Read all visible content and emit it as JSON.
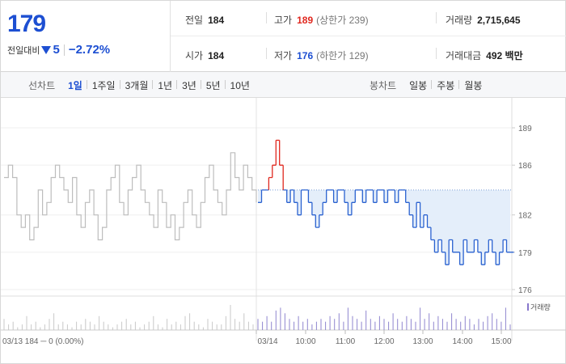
{
  "quote": {
    "price": "179",
    "change_label": "전일대비",
    "change_value": "5",
    "change_rate": "−2.72%",
    "colors": {
      "down": "#1d4fd2",
      "up": "#e0281f"
    }
  },
  "stats": {
    "prev_close": {
      "label": "전일",
      "value": "184"
    },
    "high": {
      "label": "고가",
      "value": "189",
      "sub": "(상한가 239)"
    },
    "volume": {
      "label": "거래량",
      "value": "2,715,645"
    },
    "open": {
      "label": "시가",
      "value": "184"
    },
    "low": {
      "label": "저가",
      "value": "176",
      "sub": "(하한가 129)"
    },
    "amount": {
      "label": "거래대금",
      "value": "492 백만"
    }
  },
  "toolbar": {
    "line_label": "선차트",
    "line_periods": [
      "1일",
      "1주일",
      "3개월",
      "1년",
      "3년",
      "5년",
      "10년"
    ],
    "active_period": "1일",
    "candle_label": "봉차트",
    "candle_periods": [
      "일봉",
      "주봉",
      "월봉"
    ]
  },
  "chart_data": {
    "type": "line",
    "y_ticks": [
      "189",
      "186",
      "182",
      "179",
      "176"
    ],
    "ylim": [
      176,
      189
    ],
    "prev_close": 184,
    "x_ticks": [
      "03/14",
      "10:00",
      "11:00",
      "12:00",
      "13:00",
      "14:00",
      "15:00"
    ],
    "prev_day_label": "03/13  184 ─ 0 (0.00%)",
    "volume_legend": "거래량",
    "series": [
      {
        "name": "03/13",
        "color": "#bdbdbd",
        "values": [
          185,
          186,
          185,
          182,
          181,
          182,
          180,
          181,
          184,
          182,
          183,
          185,
          186,
          185,
          184,
          183,
          185,
          182,
          181,
          183,
          184,
          182,
          180,
          181,
          184,
          185,
          186,
          183,
          182,
          184,
          185,
          186,
          184,
          183,
          182,
          181,
          184,
          183,
          181,
          182,
          180,
          181,
          183,
          184,
          182,
          181,
          183,
          185,
          186,
          184,
          183,
          182,
          184,
          187,
          185,
          184,
          186,
          185,
          184,
          183
        ]
      },
      {
        "name": "03/14",
        "color": "#2a62d0",
        "up_color": "#e0281f",
        "values": [
          183,
          184,
          184,
          185,
          186,
          188,
          186,
          184,
          183,
          184,
          183,
          182,
          184,
          184,
          183,
          182,
          181,
          182,
          183,
          184,
          184,
          183,
          184,
          184,
          183,
          182,
          183,
          184,
          184,
          183,
          184,
          184,
          183,
          184,
          184,
          183,
          184,
          184,
          183,
          184,
          184,
          183,
          182,
          181,
          183,
          181,
          182,
          181,
          180,
          179,
          180,
          179,
          178,
          180,
          179,
          179,
          178,
          180,
          179,
          179,
          180,
          179,
          178,
          179,
          180,
          179,
          178,
          179,
          180,
          179,
          179
        ]
      }
    ],
    "volume": [
      4,
      2,
      3,
      1,
      2,
      5,
      2,
      3,
      1,
      2,
      4,
      6,
      2,
      3,
      2,
      1,
      3,
      2,
      4,
      3,
      2,
      5,
      3,
      2,
      1,
      2,
      3,
      4,
      2,
      3,
      1,
      2,
      3,
      5,
      2,
      1,
      4,
      2,
      3,
      2,
      5,
      6,
      3,
      2,
      1,
      4,
      3,
      2,
      2,
      5,
      9,
      4,
      3,
      6,
      3,
      2,
      4,
      3,
      5,
      3,
      7,
      8,
      6,
      4,
      3,
      5,
      3,
      4,
      2,
      3,
      4,
      3,
      5,
      4,
      6,
      3,
      8,
      5,
      4,
      3,
      7,
      4,
      3,
      5,
      4,
      3,
      6,
      4,
      3,
      5,
      4,
      3,
      8,
      4,
      6,
      3,
      5,
      4,
      3,
      6,
      4,
      3,
      5,
      4,
      2,
      4,
      3,
      5,
      6,
      4,
      3,
      8,
      2
    ]
  }
}
